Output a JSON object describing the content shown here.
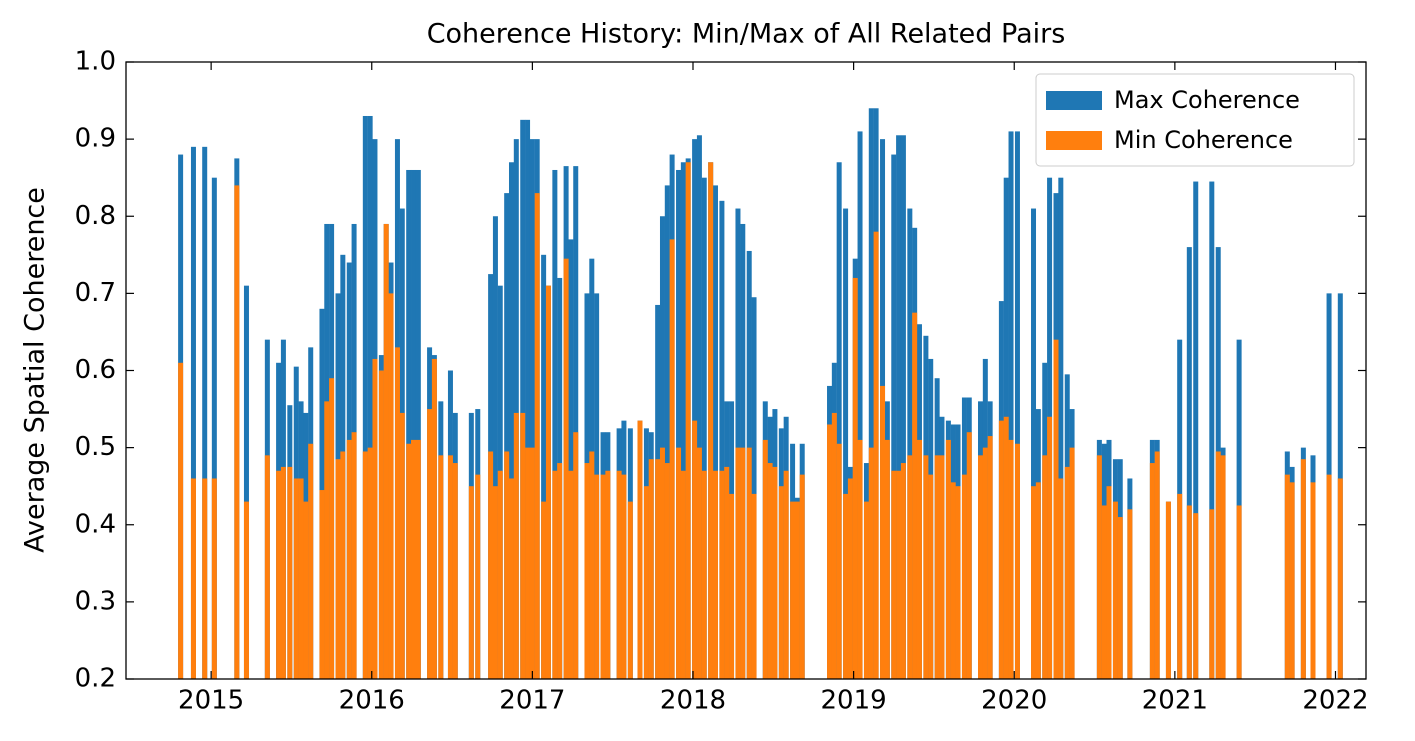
{
  "chart_data": {
    "type": "bar",
    "title": "Coherence History: Min/Max of All Related Pairs",
    "y_label": "Average Spatial Coherence",
    "x": [
      2014.81,
      2014.89,
      2014.96,
      2015.02,
      2015.16,
      2015.22,
      2015.35,
      2015.42,
      2015.45,
      2015.49,
      2015.53,
      2015.56,
      2015.59,
      2015.62,
      2015.69,
      2015.72,
      2015.75,
      2015.79,
      2015.82,
      2015.86,
      2015.89,
      2015.96,
      2015.99,
      2016.02,
      2016.06,
      2016.09,
      2016.12,
      2016.16,
      2016.19,
      2016.23,
      2016.26,
      2016.29,
      2016.36,
      2016.39,
      2016.43,
      2016.49,
      2016.52,
      2016.62,
      2016.66,
      2016.74,
      2016.77,
      2016.8,
      2016.84,
      2016.87,
      2016.9,
      2016.94,
      2016.97,
      2017.0,
      2017.03,
      2017.07,
      2017.1,
      2017.14,
      2017.17,
      2017.21,
      2017.24,
      2017.27,
      2017.34,
      2017.37,
      2017.4,
      2017.44,
      2017.47,
      2017.54,
      2017.57,
      2017.61,
      2017.67,
      2017.71,
      2017.74,
      2017.78,
      2017.81,
      2017.84,
      2017.87,
      2017.91,
      2017.94,
      2017.97,
      2018.01,
      2018.04,
      2018.07,
      2018.11,
      2018.14,
      2018.18,
      2018.21,
      2018.24,
      2018.28,
      2018.31,
      2018.35,
      2018.38,
      2018.45,
      2018.48,
      2018.51,
      2018.55,
      2018.58,
      2018.62,
      2018.65,
      2018.68,
      2018.85,
      2018.88,
      2018.91,
      2018.95,
      2018.98,
      2019.01,
      2019.04,
      2019.08,
      2019.11,
      2019.14,
      2019.18,
      2019.21,
      2019.25,
      2019.28,
      2019.31,
      2019.35,
      2019.38,
      2019.41,
      2019.45,
      2019.48,
      2019.52,
      2019.55,
      2019.59,
      2019.62,
      2019.65,
      2019.69,
      2019.72,
      2019.79,
      2019.82,
      2019.85,
      2019.92,
      2019.95,
      2019.98,
      2020.02,
      2020.12,
      2020.15,
      2020.19,
      2020.22,
      2020.26,
      2020.29,
      2020.33,
      2020.36,
      2020.53,
      2020.56,
      2020.59,
      2020.63,
      2020.66,
      2020.72,
      2020.86,
      2020.89,
      2020.96,
      2021.03,
      2021.09,
      2021.13,
      2021.23,
      2021.27,
      2021.3,
      2021.4,
      2021.7,
      2021.73,
      2021.8,
      2021.86,
      2021.96,
      2022.03
    ],
    "series": [
      {
        "name": "Max Coherence",
        "color": "#1f77b4",
        "values": [
          0.88,
          0.89,
          0.89,
          0.85,
          0.875,
          0.71,
          0.64,
          0.61,
          0.64,
          0.555,
          0.605,
          0.56,
          0.545,
          0.63,
          0.68,
          0.79,
          0.79,
          0.7,
          0.75,
          0.74,
          0.79,
          0.93,
          0.93,
          0.9,
          0.62,
          0.79,
          0.74,
          0.9,
          0.81,
          0.86,
          0.86,
          0.86,
          0.63,
          0.62,
          0.56,
          0.6,
          0.545,
          0.545,
          0.55,
          0.725,
          0.8,
          0.71,
          0.83,
          0.87,
          0.9,
          0.925,
          0.925,
          0.9,
          0.9,
          0.75,
          0.71,
          0.86,
          0.72,
          0.865,
          0.77,
          0.865,
          0.7,
          0.745,
          0.7,
          0.52,
          0.52,
          0.525,
          0.535,
          0.525,
          0.535,
          0.525,
          0.52,
          0.685,
          0.8,
          0.84,
          0.88,
          0.86,
          0.87,
          0.875,
          0.9,
          0.905,
          0.85,
          0.87,
          0.84,
          0.82,
          0.56,
          0.56,
          0.81,
          0.79,
          0.755,
          0.695,
          0.56,
          0.54,
          0.55,
          0.525,
          0.54,
          0.505,
          0.435,
          0.505,
          0.58,
          0.61,
          0.87,
          0.81,
          0.475,
          0.745,
          0.91,
          0.48,
          0.94,
          0.94,
          0.9,
          0.56,
          0.88,
          0.905,
          0.905,
          0.81,
          0.785,
          0.66,
          0.645,
          0.615,
          0.59,
          0.54,
          0.535,
          0.53,
          0.53,
          0.565,
          0.565,
          0.56,
          0.615,
          0.56,
          0.69,
          0.85,
          0.91,
          0.91,
          0.81,
          0.55,
          0.61,
          0.85,
          0.83,
          0.85,
          0.595,
          0.55,
          0.51,
          0.505,
          0.51,
          0.485,
          0.485,
          0.46,
          0.51,
          0.51,
          0.43,
          0.64,
          0.76,
          0.845,
          0.845,
          0.76,
          0.5,
          0.64,
          0.495,
          0.475,
          0.5,
          0.49,
          0.7,
          0.7
        ]
      },
      {
        "name": "Min Coherence",
        "color": "#ff7f0e",
        "values": [
          0.61,
          0.46,
          0.46,
          0.46,
          0.84,
          0.43,
          0.49,
          0.47,
          0.475,
          0.475,
          0.46,
          0.46,
          0.43,
          0.505,
          0.445,
          0.56,
          0.59,
          0.485,
          0.495,
          0.51,
          0.52,
          0.495,
          0.5,
          0.615,
          0.6,
          0.79,
          0.7,
          0.63,
          0.545,
          0.505,
          0.51,
          0.51,
          0.55,
          0.615,
          0.49,
          0.49,
          0.48,
          0.45,
          0.465,
          0.495,
          0.45,
          0.47,
          0.495,
          0.46,
          0.545,
          0.545,
          0.5,
          0.5,
          0.83,
          0.43,
          0.71,
          0.47,
          0.48,
          0.745,
          0.47,
          0.52,
          0.48,
          0.495,
          0.465,
          0.465,
          0.47,
          0.47,
          0.465,
          0.43,
          0.535,
          0.45,
          0.485,
          0.485,
          0.5,
          0.48,
          0.77,
          0.5,
          0.47,
          0.87,
          0.535,
          0.5,
          0.47,
          0.87,
          0.47,
          0.47,
          0.475,
          0.44,
          0.5,
          0.5,
          0.5,
          0.44,
          0.51,
          0.48,
          0.475,
          0.45,
          0.47,
          0.43,
          0.43,
          0.465,
          0.53,
          0.545,
          0.505,
          0.44,
          0.46,
          0.72,
          0.51,
          0.43,
          0.5,
          0.78,
          0.58,
          0.51,
          0.47,
          0.47,
          0.48,
          0.49,
          0.675,
          0.51,
          0.49,
          0.465,
          0.49,
          0.49,
          0.51,
          0.455,
          0.45,
          0.465,
          0.52,
          0.49,
          0.5,
          0.515,
          0.535,
          0.54,
          0.51,
          0.505,
          0.45,
          0.455,
          0.49,
          0.54,
          0.64,
          0.46,
          0.475,
          0.5,
          0.49,
          0.425,
          0.45,
          0.43,
          0.41,
          0.42,
          0.48,
          0.495,
          0.43,
          0.44,
          0.425,
          0.415,
          0.42,
          0.495,
          0.49,
          0.425,
          0.465,
          0.455,
          0.485,
          0.455,
          0.465,
          0.46
        ]
      }
    ],
    "xlim": [
      2014.47,
      2022.19
    ],
    "xticks": [
      2015,
      2016,
      2017,
      2018,
      2019,
      2020,
      2021,
      2022
    ],
    "ylim": [
      0.2,
      1.0
    ],
    "yticks": [
      0.2,
      0.3,
      0.4,
      0.5,
      0.6,
      0.7,
      0.8,
      0.9,
      {
        "value": 1.0,
        "label": "1.0"
      }
    ],
    "legend": "upper right"
  }
}
